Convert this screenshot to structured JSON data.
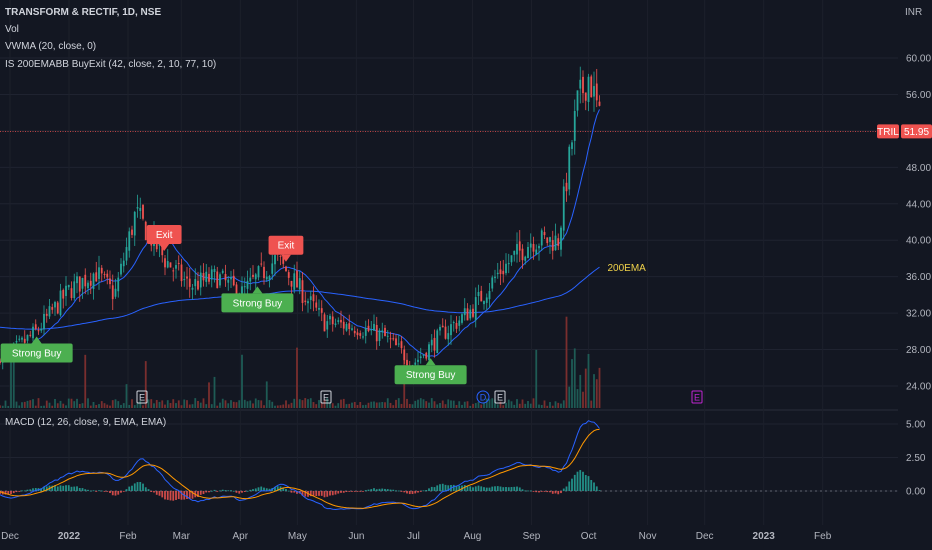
{
  "header": {
    "title_line": "TRANSFORM & RECTIF, 1D, NSE",
    "indicators": [
      "Vol",
      "VWMA (20, close, 0)",
      "IS 200EMABB BuyExit (42, close, 2, 10, 77, 10)"
    ],
    "currency": "INR"
  },
  "macd_legend": "MACD (12, 26, close, 9, EMA, EMA)",
  "price_tag": {
    "ticker": "TRIL",
    "value": "51.95"
  },
  "colors": {
    "up": "#26a69a",
    "down": "#ef5350",
    "vwma": "#2962ff",
    "ema200": "#2962ff",
    "macd": "#2962ff",
    "signal": "#ff9800",
    "ema_label": "#f0d24a"
  },
  "chart_data": [
    {
      "type": "candlestick",
      "name": "price",
      "y_ticks": [
        24.0,
        28.0,
        32.0,
        36.0,
        40.0,
        44.0,
        48.0,
        52.0,
        56.0,
        60.0
      ],
      "y_tick_labels": [
        "24.00",
        "28.00",
        "32.00",
        "36.00",
        "40.00",
        "44.00",
        "48.00",
        "56.00",
        "60.00"
      ],
      "ylim": [
        22,
        64
      ],
      "x_labels": [
        "Dec",
        "2022",
        "Feb",
        "Mar",
        "Apr",
        "May",
        "Jun",
        "Jul",
        "Aug",
        "Sep",
        "Oct",
        "Nov",
        "Dec",
        "2023",
        "Feb"
      ],
      "last_price": 51.95,
      "closes_approx": [
        {
          "date": "2021-12-01",
          "close": 27.5
        },
        {
          "date": "2021-12-15",
          "close": 30.0
        },
        {
          "date": "2022-01-01",
          "close": 34.5
        },
        {
          "date": "2022-01-15",
          "close": 36.5
        },
        {
          "date": "2022-01-25",
          "close": 34.0
        },
        {
          "date": "2022-02-05",
          "close": 43.0
        },
        {
          "date": "2022-02-20",
          "close": 38.0
        },
        {
          "date": "2022-03-05",
          "close": 35.0
        },
        {
          "date": "2022-03-20",
          "close": 36.0
        },
        {
          "date": "2022-04-01",
          "close": 34.0
        },
        {
          "date": "2022-04-20",
          "close": 38.0
        },
        {
          "date": "2022-05-01",
          "close": 35.0
        },
        {
          "date": "2022-05-15",
          "close": 31.0
        },
        {
          "date": "2022-06-01",
          "close": 30.5
        },
        {
          "date": "2022-06-15",
          "close": 29.5
        },
        {
          "date": "2022-07-01",
          "close": 26.5
        },
        {
          "date": "2022-07-15",
          "close": 29.5
        },
        {
          "date": "2022-08-01",
          "close": 32.5
        },
        {
          "date": "2022-08-15",
          "close": 36.5
        },
        {
          "date": "2022-09-01",
          "close": 40.0
        },
        {
          "date": "2022-09-15",
          "close": 40.0
        },
        {
          "date": "2022-09-25",
          "close": 55.0
        },
        {
          "date": "2022-10-01",
          "close": 58.0
        },
        {
          "date": "2022-10-05",
          "close": 55.0
        },
        {
          "date": "2022-10-08",
          "close": 51.95
        }
      ],
      "annotations": [
        {
          "text": "Strong Buy",
          "date": "2021-12-15",
          "kind": "buy"
        },
        {
          "text": "Exit",
          "date": "2022-02-20",
          "kind": "exit"
        },
        {
          "text": "Strong Buy",
          "date": "2022-04-10",
          "kind": "buy"
        },
        {
          "text": "Exit",
          "date": "2022-04-25",
          "kind": "exit"
        },
        {
          "text": "Strong Buy",
          "date": "2022-07-10",
          "kind": "buy"
        },
        {
          "text": "200EMA",
          "kind": "label"
        }
      ],
      "event_markers": [
        "E",
        "E",
        "D",
        "E",
        "E"
      ]
    },
    {
      "type": "line",
      "name": "macd",
      "y_tick_labels": [
        "5.00",
        "2.50",
        "0.00"
      ],
      "y_ticks": [
        5.0,
        2.5,
        0.0
      ],
      "ylim": [
        -1.6,
        6.2
      ]
    }
  ]
}
